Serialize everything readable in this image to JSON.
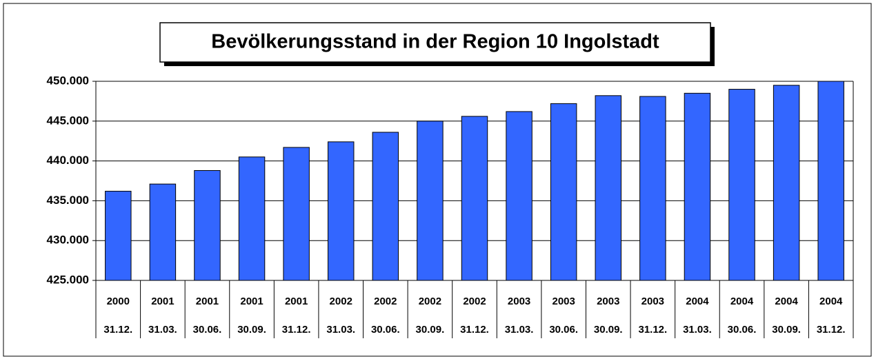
{
  "chart_data": {
    "type": "bar",
    "title": "Bevölkerungsstand in der Region 10 Ingolstadt",
    "categories": [
      "2000",
      "2001",
      "2001",
      "2001",
      "2001",
      "2002",
      "2002",
      "2002",
      "2002",
      "2003",
      "2003",
      "2003",
      "2003",
      "2004",
      "2004",
      "2004",
      "2004"
    ],
    "category_dates": [
      "31.12.",
      "31.03.",
      "30.06.",
      "30.09.",
      "31.12.",
      "31.03.",
      "30.06.",
      "30.09.",
      "31.12.",
      "31.03.",
      "30.06.",
      "30.09.",
      "31.12.",
      "31.03.",
      "30.06.",
      "30.09.",
      "31.12."
    ],
    "values": [
      436200,
      437100,
      438800,
      440500,
      441700,
      442400,
      443600,
      445000,
      445600,
      446200,
      447200,
      448200,
      448100,
      448500,
      449000,
      449500,
      450000
    ],
    "color": "#3366ff",
    "ylim": [
      425000,
      450000
    ],
    "yticks": [
      {
        "value": 425000,
        "label": "425.000"
      },
      {
        "value": 430000,
        "label": "430.000"
      },
      {
        "value": 435000,
        "label": "435.000"
      },
      {
        "value": 440000,
        "label": "440.000"
      },
      {
        "value": 445000,
        "label": "445.000"
      },
      {
        "value": 450000,
        "label": "450.000"
      }
    ],
    "grid": true
  }
}
